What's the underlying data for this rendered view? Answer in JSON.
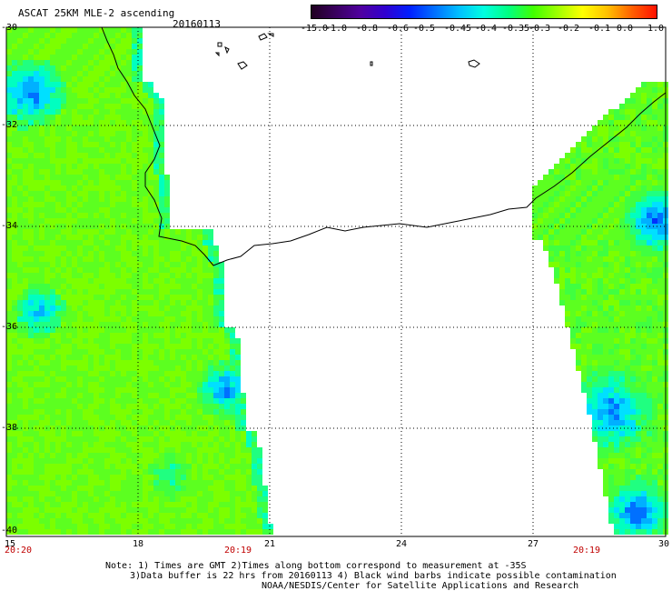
{
  "header": {
    "title": "ASCAT 25KM MLE-2 ascending",
    "date": "20160113"
  },
  "colorbar": {
    "labels": [
      "-15.0",
      "-1.0",
      "-0.8",
      "-0.6",
      "-0.5",
      "-0.45",
      "-0.4",
      "-0.35",
      "-0.3",
      "-0.2",
      "-0.1",
      "0.0",
      "1.0"
    ],
    "colors": [
      "#200020",
      "#3a0060",
      "#5000a0",
      "#3000d0",
      "#0020ff",
      "#0070ff",
      "#00c0ff",
      "#00ffe0",
      "#00ff80",
      "#40ff00",
      "#a0ff00",
      "#ffff00",
      "#ffc000",
      "#ff6000",
      "#ff1000"
    ]
  },
  "map": {
    "lat_labels": [
      "-30",
      "-32",
      "-34",
      "-36",
      "-38",
      "-40"
    ],
    "lon_labels": [
      "15",
      "18",
      "21",
      "24",
      "27",
      "30"
    ],
    "time_labels": [
      "20:20",
      "20:19",
      "20:19"
    ]
  },
  "footer": {
    "line1": "Note: 1) Times are GMT 2)Times along bottom correspond to measurement at -35S",
    "line2": "3)Data buffer is 22 hrs from 20160113 4) Black wind barbs indicate possible contamination",
    "line3": "NOAA/NESDIS/Center for Satellite Applications and Research"
  }
}
